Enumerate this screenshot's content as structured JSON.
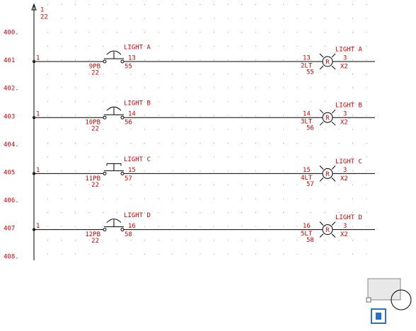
{
  "rail": {
    "top_labels": [
      "1",
      "22"
    ]
  },
  "line_numbers": [
    "400.",
    "401",
    "402.",
    "403",
    "404.",
    "405",
    "406.",
    "407",
    "408."
  ],
  "rungs": [
    {
      "left_wire": "1",
      "pb_title": "LIGHT A",
      "pb_wire": "13",
      "pb_tag": "9PB",
      "pb_ref": "22",
      "pb_bottom": "55",
      "lamp_wire_in": "13",
      "lamp_symbol": "R",
      "lamp_wire_out": "3",
      "lamp_title": "LIGHT A",
      "lamp_tag": "2LT",
      "lamp_ref": "55",
      "lamp_terminal": "X2"
    },
    {
      "left_wire": "1",
      "pb_title": "LIGHT B",
      "pb_wire": "14",
      "pb_tag": "10PB",
      "pb_ref": "22",
      "pb_bottom": "56",
      "lamp_wire_in": "14",
      "lamp_symbol": "R",
      "lamp_wire_out": "3",
      "lamp_title": "LIGHT B",
      "lamp_tag": "3LT",
      "lamp_ref": "56",
      "lamp_terminal": "X2"
    },
    {
      "left_wire": "1",
      "pb_title": "LIGHT C",
      "pb_wire": "15",
      "pb_tag": "11PB",
      "pb_ref": "22",
      "pb_bottom": "57",
      "lamp_wire_in": "15",
      "lamp_symbol": "R",
      "lamp_wire_out": "3",
      "lamp_title": "LIGHT C",
      "lamp_tag": "4LT",
      "lamp_ref": "57",
      "lamp_terminal": "X2"
    },
    {
      "left_wire": "1",
      "pb_title": "LIGHT D",
      "pb_wire": "16",
      "pb_tag": "12PB",
      "pb_ref": "22",
      "pb_bottom": "58",
      "lamp_wire_in": "16",
      "lamp_symbol": "R",
      "lamp_wire_out": "3",
      "lamp_title": "LIGHT D",
      "lamp_tag": "5LT",
      "lamp_ref": "58",
      "lamp_terminal": "X2"
    }
  ]
}
